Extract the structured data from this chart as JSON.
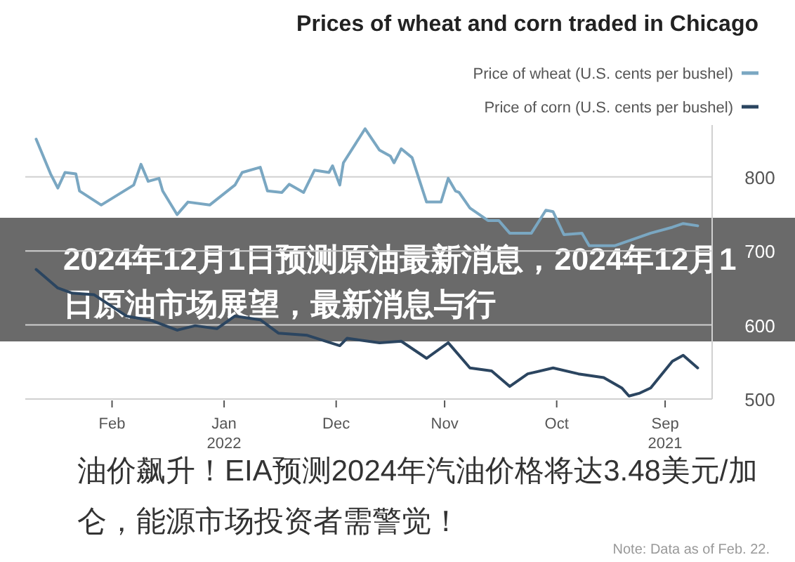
{
  "chart_data": {
    "type": "line",
    "title": "Prices of wheat and corn traded in Chicago",
    "annotations": [
      "Note: Data as of Feb. 22.",
      "2024年12月1日预测原油最新消息，2024年12月1日原油市场展望，最新消息与行",
      "油价飙升！EIA预测2024年汽油价格将达3.48美元/加仑，能源市场投资者需警觉！"
    ],
    "series": [
      {
        "name": "Price of wheat (U.S. cents per bushel)",
        "color": "#7aa7c2",
        "x": [
          "2022-02-22",
          "2022-02-18",
          "2022-02-16",
          "2022-02-14",
          "2022-02-11",
          "2022-02-10",
          "2022-02-04",
          "2022-01-26",
          "2022-01-24",
          "2022-01-22",
          "2022-01-19",
          "2022-01-18",
          "2022-01-14",
          "2022-01-11",
          "2022-01-05",
          "2021-12-29",
          "2021-12-27",
          "2021-12-22",
          "2021-12-20",
          "2021-12-16",
          "2021-12-14",
          "2021-12-10",
          "2021-12-07",
          "2021-12-03",
          "2021-12-02",
          "2021-11-30",
          "2021-11-29",
          "2021-11-23",
          "2021-11-19",
          "2021-11-16",
          "2021-11-15",
          "2021-11-13",
          "2021-11-10",
          "2021-11-07",
          "2021-11-06",
          "2021-11-02",
          "2021-10-31",
          "2021-10-29",
          "2021-10-28",
          "2021-10-25",
          "2021-10-20",
          "2021-10-17",
          "2021-10-14",
          "2021-10-08",
          "2021-10-04",
          "2021-10-02",
          "2021-09-29",
          "2021-09-24",
          "2021-09-22",
          "2021-09-15",
          "2021-09-05",
          "2021-08-30",
          "2021-08-27",
          "2021-08-23"
        ],
        "values": [
          851,
          804,
          785,
          806,
          804,
          781,
          762,
          789,
          817,
          794,
          798,
          781,
          749,
          766,
          762,
          789,
          806,
          813,
          781,
          779,
          790,
          779,
          809,
          806,
          815,
          789,
          819,
          865,
          836,
          828,
          819,
          838,
          826,
          781,
          766,
          766,
          798,
          781,
          779,
          758,
          741,
          741,
          724,
          724,
          755,
          753,
          722,
          724,
          707,
          707,
          724,
          732,
          737,
          734
        ]
      },
      {
        "name": "Price of corn (U.S. cents per bushel)",
        "color": "#2b4560",
        "x": [
          "2022-02-22",
          "2022-02-16",
          "2022-02-12",
          "2022-02-06",
          "2022-01-28",
          "2022-01-21",
          "2022-01-14",
          "2022-01-09",
          "2022-01-03",
          "2021-12-29",
          "2021-12-22",
          "2021-12-17",
          "2021-12-09",
          "2021-11-30",
          "2021-11-28",
          "2021-11-19",
          "2021-11-13",
          "2021-11-06",
          "2021-10-31",
          "2021-10-25",
          "2021-10-19",
          "2021-10-14",
          "2021-10-09",
          "2021-10-02",
          "2021-09-25",
          "2021-09-18",
          "2021-09-13",
          "2021-09-11",
          "2021-09-08",
          "2021-09-05",
          "2021-08-30",
          "2021-08-27",
          "2021-08-23"
        ],
        "values": [
          675,
          650,
          643,
          641,
          612,
          606,
          593,
          599,
          595,
          612,
          607,
          589,
          586,
          572,
          582,
          576,
          578,
          555,
          576,
          542,
          538,
          517,
          534,
          542,
          534,
          529,
          515,
          504,
          508,
          515,
          551,
          559,
          542
        ]
      }
    ],
    "xlim": [
      "2022-02-25",
      "2021-08-19"
    ],
    "xticks": [
      {
        "value": "2022-02-01",
        "label": "Feb"
      },
      {
        "value": "2022-01-01",
        "label": "Jan 2022"
      },
      {
        "value": "2021-12-01",
        "label": "Dec"
      },
      {
        "value": "2021-11-01",
        "label": "Nov"
      },
      {
        "value": "2021-10-01",
        "label": "Oct"
      },
      {
        "value": "2021-09-01",
        "label": "Sep 2021"
      }
    ],
    "ylim": [
      500,
      870
    ],
    "yticks": [
      500,
      600,
      700,
      800
    ],
    "grid": "y",
    "legend": "top right",
    "marker": "none",
    "line_style": "solid"
  }
}
